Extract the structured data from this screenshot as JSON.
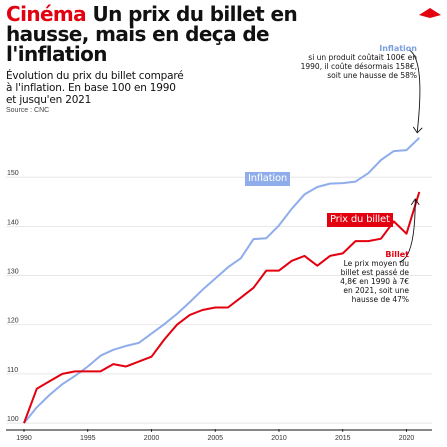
{
  "header": {
    "kicker": "Cinéma",
    "title": "Un prix du billet en hausse, mais en deça de l'inflation",
    "subtitle": "Évolution du prix du billet comparé à l'inflation. En base 100 en 1990 et jusqu'en 2021",
    "source": "Source : CNC"
  },
  "annotations": {
    "inflation_head": "Inflation",
    "inflation_text": "si un produit coûtait 100€ en 1990, il coûte désormais 158€, soit une hausse de 58%",
    "billet_head": "Billet",
    "billet_text": "Le prix moyen du billet est passé de 4,8€ en 1990 à 7€ en 2021, soit une hausse de 47%"
  },
  "colors": {
    "inflation": "#8fadeb",
    "billet": "#e3000f",
    "brand": "#e3000f"
  },
  "chart_data": {
    "type": "line",
    "x": [
      1990,
      1991,
      1992,
      1993,
      1994,
      1995,
      1996,
      1997,
      1998,
      1999,
      2000,
      2001,
      2002,
      2003,
      2004,
      2005,
      2006,
      2007,
      2008,
      2009,
      2010,
      2011,
      2012,
      2013,
      2014,
      2015,
      2016,
      2017,
      2018,
      2019,
      2020,
      2021
    ],
    "series": [
      {
        "name": "Inflation",
        "values": [
          100,
          103.2,
          105.7,
          107.9,
          109.6,
          111.5,
          113.7,
          114.9,
          115.7,
          116.3,
          118.2,
          120.1,
          122.2,
          124.6,
          127.1,
          129.4,
          131.7,
          133.5,
          137.4,
          137.6,
          140.2,
          143.6,
          146.5,
          148,
          148.7,
          148.8,
          149.1,
          150.8,
          153.5,
          155.3,
          155.5,
          158
        ]
      },
      {
        "name": "Prix du billet",
        "values": [
          100,
          107,
          108.5,
          110,
          110.5,
          110.5,
          110.5,
          112,
          111.5,
          112.5,
          113.5,
          117,
          120,
          122,
          123,
          123.5,
          123.5,
          125.5,
          127.5,
          131,
          131,
          133,
          134,
          132,
          134,
          134.5,
          137,
          137,
          137.5,
          141,
          138.5,
          147
        ]
      }
    ],
    "xticks": [
      1990,
      1995,
      2000,
      2005,
      2010,
      2015,
      2020
    ],
    "yticks": [
      100,
      110,
      120,
      130,
      140,
      150
    ],
    "xlim": [
      1990,
      2022
    ],
    "ylim": [
      99,
      160
    ],
    "grid": true,
    "labels": {
      "inflation": "Inflation",
      "billet": "Prix du billet"
    }
  }
}
